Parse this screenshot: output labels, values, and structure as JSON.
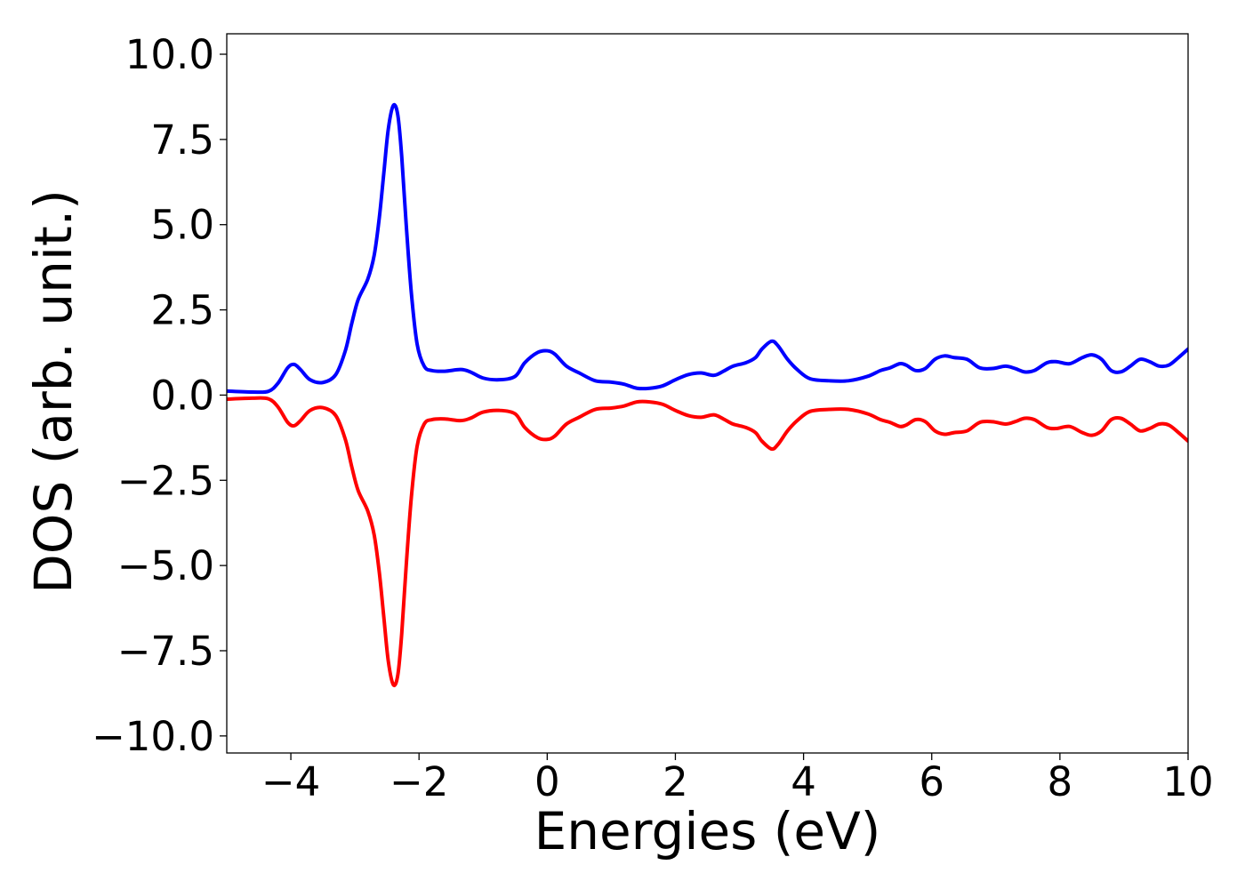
{
  "chart_data": {
    "type": "line",
    "title": "",
    "xlabel": "Energies (eV)",
    "ylabel": "DOS (arb. unit.)",
    "xlim": [
      -5,
      10
    ],
    "ylim": [
      -10.5,
      10.6
    ],
    "xticks": [
      -4,
      -2,
      0,
      2,
      4,
      6,
      8,
      10
    ],
    "xtick_labels": [
      "−4",
      "−2",
      "0",
      "2",
      "4",
      "6",
      "8",
      "10"
    ],
    "yticks": [
      10.0,
      7.5,
      5.0,
      2.5,
      0.0,
      -2.5,
      -5.0,
      -7.5,
      -10.0
    ],
    "ytick_labels": [
      "10.0",
      "7.5",
      "5.0",
      "2.5",
      "0.0",
      "−2.5",
      "−5.0",
      "−7.5",
      "−10.0"
    ],
    "grid": false,
    "legend": false,
    "series": [
      {
        "color": "#0000ff",
        "points": [
          [
            -5.0,
            0.12
          ],
          [
            -4.6,
            0.09
          ],
          [
            -4.35,
            0.11
          ],
          [
            -4.2,
            0.35
          ],
          [
            -4.05,
            0.8
          ],
          [
            -3.95,
            0.9
          ],
          [
            -3.85,
            0.75
          ],
          [
            -3.7,
            0.45
          ],
          [
            -3.5,
            0.37
          ],
          [
            -3.3,
            0.6
          ],
          [
            -3.15,
            1.3
          ],
          [
            -3.05,
            2.1
          ],
          [
            -2.95,
            2.8
          ],
          [
            -2.8,
            3.4
          ],
          [
            -2.7,
            4.1
          ],
          [
            -2.62,
            5.2
          ],
          [
            -2.55,
            6.5
          ],
          [
            -2.48,
            7.8
          ],
          [
            -2.4,
            8.5
          ],
          [
            -2.33,
            8.2
          ],
          [
            -2.27,
            7.0
          ],
          [
            -2.2,
            5.0
          ],
          [
            -2.12,
            3.0
          ],
          [
            -2.03,
            1.5
          ],
          [
            -1.92,
            0.85
          ],
          [
            -1.8,
            0.72
          ],
          [
            -1.6,
            0.7
          ],
          [
            -1.35,
            0.75
          ],
          [
            -1.2,
            0.68
          ],
          [
            -1.0,
            0.5
          ],
          [
            -0.75,
            0.45
          ],
          [
            -0.5,
            0.55
          ],
          [
            -0.35,
            0.95
          ],
          [
            -0.15,
            1.25
          ],
          [
            0.0,
            1.3
          ],
          [
            0.12,
            1.2
          ],
          [
            0.3,
            0.85
          ],
          [
            0.5,
            0.65
          ],
          [
            0.75,
            0.42
          ],
          [
            1.0,
            0.38
          ],
          [
            1.2,
            0.32
          ],
          [
            1.4,
            0.2
          ],
          [
            1.6,
            0.2
          ],
          [
            1.8,
            0.27
          ],
          [
            2.0,
            0.45
          ],
          [
            2.2,
            0.6
          ],
          [
            2.4,
            0.65
          ],
          [
            2.6,
            0.58
          ],
          [
            2.75,
            0.7
          ],
          [
            2.9,
            0.85
          ],
          [
            3.1,
            0.95
          ],
          [
            3.25,
            1.1
          ],
          [
            3.35,
            1.35
          ],
          [
            3.5,
            1.58
          ],
          [
            3.6,
            1.45
          ],
          [
            3.75,
            1.05
          ],
          [
            3.9,
            0.75
          ],
          [
            4.1,
            0.48
          ],
          [
            4.4,
            0.42
          ],
          [
            4.7,
            0.42
          ],
          [
            5.0,
            0.55
          ],
          [
            5.2,
            0.72
          ],
          [
            5.35,
            0.8
          ],
          [
            5.5,
            0.92
          ],
          [
            5.6,
            0.88
          ],
          [
            5.75,
            0.72
          ],
          [
            5.9,
            0.78
          ],
          [
            6.05,
            1.05
          ],
          [
            6.2,
            1.15
          ],
          [
            6.35,
            1.1
          ],
          [
            6.55,
            1.05
          ],
          [
            6.75,
            0.8
          ],
          [
            6.95,
            0.78
          ],
          [
            7.15,
            0.85
          ],
          [
            7.3,
            0.78
          ],
          [
            7.45,
            0.68
          ],
          [
            7.6,
            0.72
          ],
          [
            7.8,
            0.95
          ],
          [
            7.95,
            0.98
          ],
          [
            8.15,
            0.92
          ],
          [
            8.35,
            1.1
          ],
          [
            8.5,
            1.18
          ],
          [
            8.65,
            1.05
          ],
          [
            8.8,
            0.72
          ],
          [
            8.95,
            0.68
          ],
          [
            9.1,
            0.85
          ],
          [
            9.25,
            1.05
          ],
          [
            9.4,
            0.98
          ],
          [
            9.55,
            0.85
          ],
          [
            9.7,
            0.88
          ],
          [
            9.85,
            1.1
          ],
          [
            10.0,
            1.35
          ]
        ]
      },
      {
        "color": "#ff0000",
        "points": [
          [
            -5.0,
            -0.12
          ],
          [
            -4.6,
            -0.09
          ],
          [
            -4.35,
            -0.11
          ],
          [
            -4.2,
            -0.35
          ],
          [
            -4.05,
            -0.8
          ],
          [
            -3.95,
            -0.9
          ],
          [
            -3.85,
            -0.75
          ],
          [
            -3.7,
            -0.45
          ],
          [
            -3.5,
            -0.37
          ],
          [
            -3.3,
            -0.6
          ],
          [
            -3.15,
            -1.3
          ],
          [
            -3.05,
            -2.1
          ],
          [
            -2.95,
            -2.8
          ],
          [
            -2.8,
            -3.4
          ],
          [
            -2.7,
            -4.1
          ],
          [
            -2.62,
            -5.2
          ],
          [
            -2.55,
            -6.5
          ],
          [
            -2.48,
            -7.8
          ],
          [
            -2.4,
            -8.5
          ],
          [
            -2.33,
            -8.2
          ],
          [
            -2.27,
            -7.0
          ],
          [
            -2.2,
            -5.0
          ],
          [
            -2.12,
            -3.0
          ],
          [
            -2.03,
            -1.5
          ],
          [
            -1.92,
            -0.85
          ],
          [
            -1.8,
            -0.72
          ],
          [
            -1.6,
            -0.7
          ],
          [
            -1.35,
            -0.75
          ],
          [
            -1.2,
            -0.68
          ],
          [
            -1.0,
            -0.5
          ],
          [
            -0.75,
            -0.45
          ],
          [
            -0.5,
            -0.55
          ],
          [
            -0.35,
            -0.95
          ],
          [
            -0.15,
            -1.25
          ],
          [
            0.0,
            -1.3
          ],
          [
            0.12,
            -1.2
          ],
          [
            0.3,
            -0.85
          ],
          [
            0.5,
            -0.65
          ],
          [
            0.75,
            -0.42
          ],
          [
            1.0,
            -0.38
          ],
          [
            1.2,
            -0.32
          ],
          [
            1.4,
            -0.2
          ],
          [
            1.6,
            -0.2
          ],
          [
            1.8,
            -0.27
          ],
          [
            2.0,
            -0.45
          ],
          [
            2.2,
            -0.6
          ],
          [
            2.4,
            -0.65
          ],
          [
            2.6,
            -0.58
          ],
          [
            2.75,
            -0.7
          ],
          [
            2.9,
            -0.85
          ],
          [
            3.1,
            -0.95
          ],
          [
            3.25,
            -1.1
          ],
          [
            3.35,
            -1.35
          ],
          [
            3.5,
            -1.58
          ],
          [
            3.6,
            -1.45
          ],
          [
            3.75,
            -1.05
          ],
          [
            3.9,
            -0.75
          ],
          [
            4.1,
            -0.48
          ],
          [
            4.4,
            -0.42
          ],
          [
            4.7,
            -0.42
          ],
          [
            5.0,
            -0.55
          ],
          [
            5.2,
            -0.72
          ],
          [
            5.35,
            -0.8
          ],
          [
            5.5,
            -0.92
          ],
          [
            5.6,
            -0.88
          ],
          [
            5.75,
            -0.72
          ],
          [
            5.9,
            -0.78
          ],
          [
            6.05,
            -1.05
          ],
          [
            6.2,
            -1.15
          ],
          [
            6.35,
            -1.1
          ],
          [
            6.55,
            -1.05
          ],
          [
            6.75,
            -0.8
          ],
          [
            6.95,
            -0.78
          ],
          [
            7.15,
            -0.85
          ],
          [
            7.3,
            -0.78
          ],
          [
            7.45,
            -0.68
          ],
          [
            7.6,
            -0.72
          ],
          [
            7.8,
            -0.95
          ],
          [
            7.95,
            -0.98
          ],
          [
            8.15,
            -0.92
          ],
          [
            8.35,
            -1.1
          ],
          [
            8.5,
            -1.18
          ],
          [
            8.65,
            -1.05
          ],
          [
            8.8,
            -0.72
          ],
          [
            8.95,
            -0.68
          ],
          [
            9.1,
            -0.85
          ],
          [
            9.25,
            -1.05
          ],
          [
            9.4,
            -0.98
          ],
          [
            9.55,
            -0.85
          ],
          [
            9.7,
            -0.88
          ],
          [
            9.85,
            -1.1
          ],
          [
            10.0,
            -1.35
          ]
        ]
      }
    ]
  }
}
